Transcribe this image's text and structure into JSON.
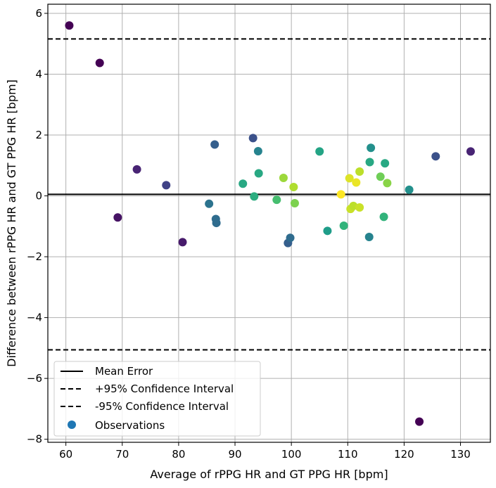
{
  "chart_data": {
    "type": "scatter",
    "title": "",
    "xlabel": "Average of rPPG HR and GT PPG HR [bpm]",
    "ylabel": "Difference between rPPG HR and GT PPG HR [bpm]",
    "xlim": [
      56.8,
      135.3
    ],
    "ylim": [
      -8.1,
      6.3
    ],
    "xticks": [
      60,
      70,
      80,
      90,
      100,
      110,
      120,
      130
    ],
    "yticks": [
      -8,
      -6,
      -4,
      -2,
      0,
      2,
      4,
      6
    ],
    "xtick_labels": [
      "60",
      "70",
      "80",
      "90",
      "100",
      "110",
      "120",
      "130"
    ],
    "ytick_labels": [
      "−8",
      "−6",
      "−4",
      "−2",
      "0",
      "2",
      "4",
      "6"
    ],
    "grid": true,
    "mean_error": 0.05,
    "upper_ci": 5.16,
    "lower_ci": -5.06,
    "legend_position": "lower-left",
    "legend": [
      "Mean Error",
      "+95% Confidence Interval",
      "-95% Confidence Interval",
      "Observations"
    ],
    "colors": {
      "line": "#000000",
      "grid": "#b0b0b0",
      "legend_marker": "#1f77b4",
      "colormap": [
        "#440154",
        "#482878",
        "#3e4989",
        "#31688e",
        "#26828e",
        "#1f9e89",
        "#35b779",
        "#6ece58",
        "#b5de2b",
        "#fde725"
      ]
    },
    "points": [
      {
        "x": 60.6,
        "y": 5.6,
        "c": 0.0
      },
      {
        "x": 66.0,
        "y": 4.37,
        "c": 0.0
      },
      {
        "x": 69.2,
        "y": -0.71,
        "c": 0.05
      },
      {
        "x": 72.6,
        "y": 0.87,
        "c": 0.1
      },
      {
        "x": 77.8,
        "y": 0.35,
        "c": 0.2
      },
      {
        "x": 80.7,
        "y": -1.52,
        "c": 0.07
      },
      {
        "x": 85.4,
        "y": -0.26,
        "c": 0.38
      },
      {
        "x": 86.4,
        "y": 1.69,
        "c": 0.3
      },
      {
        "x": 86.6,
        "y": -0.76,
        "c": 0.35
      },
      {
        "x": 86.7,
        "y": -0.89,
        "c": 0.35
      },
      {
        "x": 91.4,
        "y": 0.4,
        "c": 0.6
      },
      {
        "x": 93.2,
        "y": 1.9,
        "c": 0.25
      },
      {
        "x": 93.4,
        "y": -0.02,
        "c": 0.62
      },
      {
        "x": 94.1,
        "y": 1.47,
        "c": 0.45
      },
      {
        "x": 94.2,
        "y": 0.74,
        "c": 0.6
      },
      {
        "x": 97.4,
        "y": -0.13,
        "c": 0.7
      },
      {
        "x": 98.6,
        "y": 0.59,
        "c": 0.85
      },
      {
        "x": 99.4,
        "y": -1.55,
        "c": 0.3
      },
      {
        "x": 99.8,
        "y": -1.38,
        "c": 0.35
      },
      {
        "x": 100.4,
        "y": 0.29,
        "c": 0.88
      },
      {
        "x": 100.6,
        "y": -0.24,
        "c": 0.8
      },
      {
        "x": 105.0,
        "y": 1.46,
        "c": 0.58
      },
      {
        "x": 106.4,
        "y": -1.15,
        "c": 0.55
      },
      {
        "x": 108.8,
        "y": 0.05,
        "c": 1.0
      },
      {
        "x": 109.3,
        "y": -0.98,
        "c": 0.65
      },
      {
        "x": 110.3,
        "y": 0.58,
        "c": 0.95
      },
      {
        "x": 110.5,
        "y": -0.43,
        "c": 0.92
      },
      {
        "x": 111.0,
        "y": -0.33,
        "c": 0.9
      },
      {
        "x": 111.5,
        "y": 0.44,
        "c": 0.97
      },
      {
        "x": 112.1,
        "y": 0.8,
        "c": 0.9
      },
      {
        "x": 112.1,
        "y": -0.38,
        "c": 0.92
      },
      {
        "x": 113.8,
        "y": -1.35,
        "c": 0.45
      },
      {
        "x": 113.9,
        "y": 1.11,
        "c": 0.6
      },
      {
        "x": 114.1,
        "y": 1.58,
        "c": 0.5
      },
      {
        "x": 115.8,
        "y": 0.63,
        "c": 0.78
      },
      {
        "x": 116.4,
        "y": -0.69,
        "c": 0.65
      },
      {
        "x": 116.6,
        "y": 1.07,
        "c": 0.6
      },
      {
        "x": 117.0,
        "y": 0.42,
        "c": 0.82
      },
      {
        "x": 120.9,
        "y": 0.2,
        "c": 0.5
      },
      {
        "x": 122.7,
        "y": -7.42,
        "c": 0.0
      },
      {
        "x": 125.6,
        "y": 1.3,
        "c": 0.25
      },
      {
        "x": 131.8,
        "y": 1.46,
        "c": 0.1
      }
    ]
  }
}
